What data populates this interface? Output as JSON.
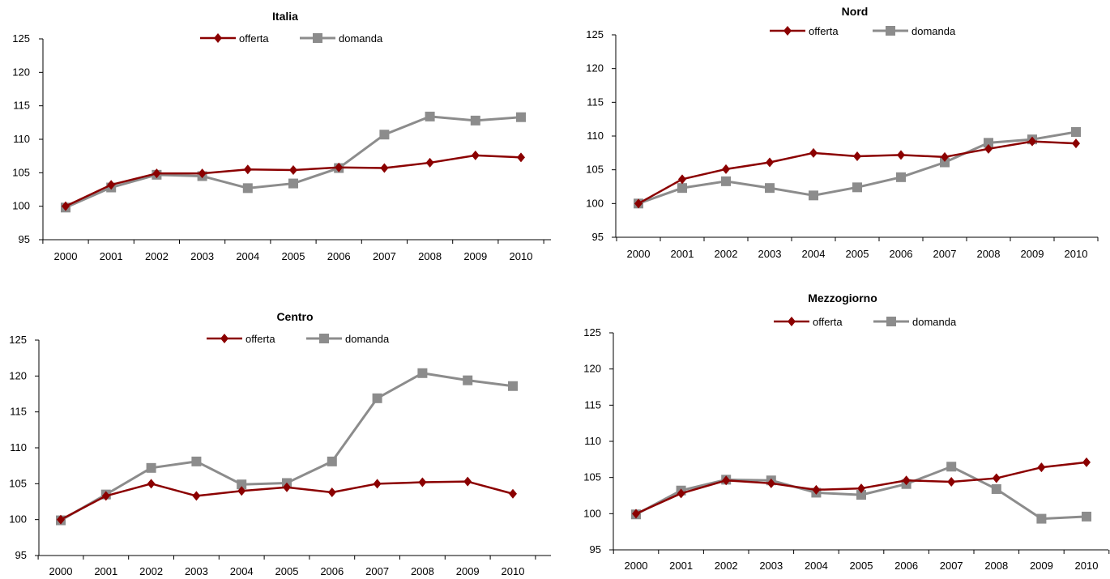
{
  "colors": {
    "offerta": "#8B0000",
    "domanda": "#8C8C8C",
    "axis": "#000000"
  },
  "chart_data": [
    {
      "type": "line",
      "title": "Italia",
      "categories": [
        "2000",
        "2001",
        "2002",
        "2003",
        "2004",
        "2005",
        "2006",
        "2007",
        "2008",
        "2009",
        "2010"
      ],
      "ylim": [
        95,
        125
      ],
      "yticks": [
        "95",
        "100",
        "105",
        "110",
        "115",
        "120",
        "125"
      ],
      "legend": "top",
      "grid": false,
      "series": [
        {
          "name": "offerta",
          "marker": "diamond",
          "values": [
            100,
            103.2,
            104.9,
            104.9,
            105.5,
            105.4,
            105.8,
            105.7,
            106.5,
            107.6,
            107.3
          ]
        },
        {
          "name": "domanda",
          "marker": "square",
          "values": [
            99.8,
            102.8,
            104.7,
            104.5,
            102.7,
            103.4,
            105.7,
            110.7,
            113.4,
            112.8,
            113.3
          ]
        }
      ]
    },
    {
      "type": "line",
      "title": "Nord",
      "categories": [
        "2000",
        "2001",
        "2002",
        "2003",
        "2004",
        "2005",
        "2006",
        "2007",
        "2008",
        "2009",
        "2010"
      ],
      "ylim": [
        95,
        125
      ],
      "yticks": [
        "95",
        "100",
        "105",
        "110",
        "115",
        "120",
        "125"
      ],
      "legend": "top",
      "grid": false,
      "series": [
        {
          "name": "offerta",
          "marker": "diamond",
          "values": [
            100,
            103.6,
            105.1,
            106.1,
            107.5,
            107.0,
            107.2,
            106.9,
            108.1,
            109.2,
            108.9
          ]
        },
        {
          "name": "domanda",
          "marker": "square",
          "values": [
            100,
            102.3,
            103.3,
            102.3,
            101.2,
            102.4,
            103.9,
            106.1,
            109.0,
            109.5,
            110.6
          ]
        }
      ]
    },
    {
      "type": "line",
      "title": "Centro",
      "categories": [
        "2000",
        "2001",
        "2002",
        "2003",
        "2004",
        "2005",
        "2006",
        "2007",
        "2008",
        "2009",
        "2010"
      ],
      "ylim": [
        95,
        125
      ],
      "yticks": [
        "95",
        "100",
        "105",
        "110",
        "115",
        "120",
        "125"
      ],
      "legend": "top",
      "grid": false,
      "series": [
        {
          "name": "offerta",
          "marker": "diamond",
          "values": [
            100,
            103.3,
            105.0,
            103.3,
            104.0,
            104.5,
            103.8,
            105.0,
            105.2,
            105.3,
            103.6
          ]
        },
        {
          "name": "domanda",
          "marker": "square",
          "values": [
            99.9,
            103.5,
            107.2,
            108.1,
            104.9,
            105.1,
            108.1,
            116.9,
            120.4,
            119.4,
            118.6
          ]
        }
      ]
    },
    {
      "type": "line",
      "title": "Mezzogiorno",
      "categories": [
        "2000",
        "2001",
        "2002",
        "2003",
        "2004",
        "2005",
        "2006",
        "2007",
        "2008",
        "2009",
        "2010"
      ],
      "ylim": [
        95,
        125
      ],
      "yticks": [
        "95",
        "100",
        "105",
        "110",
        "115",
        "120",
        "125"
      ],
      "legend": "top",
      "grid": false,
      "series": [
        {
          "name": "offerta",
          "marker": "diamond",
          "values": [
            100,
            102.8,
            104.6,
            104.2,
            103.3,
            103.5,
            104.6,
            104.4,
            104.9,
            106.4,
            107.1
          ]
        },
        {
          "name": "domanda",
          "marker": "square",
          "values": [
            99.9,
            103.2,
            104.7,
            104.6,
            102.9,
            102.6,
            104.1,
            106.5,
            103.4,
            99.3,
            99.6
          ]
        }
      ]
    }
  ]
}
